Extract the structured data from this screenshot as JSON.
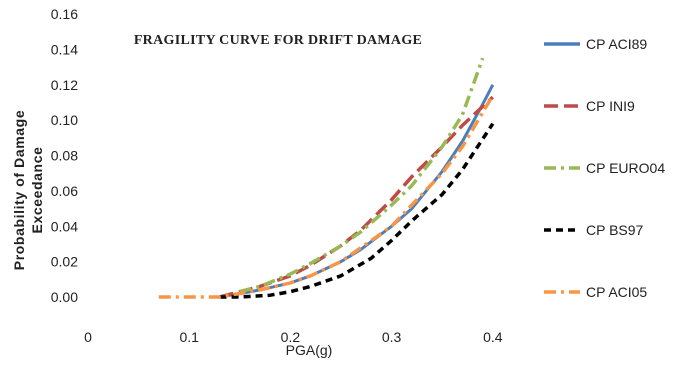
{
  "chart_data": {
    "type": "line",
    "title": "FRAGILITY CURVE FOR DRIFT DAMAGE",
    "xlabel": "PGA(g)",
    "ylabel_lines": [
      "Probability of Damage",
      "Exceedance"
    ],
    "xlim": [
      0,
      0.5
    ],
    "ylim": [
      0,
      0.16
    ],
    "x_ticks": [
      "0",
      "0.1",
      "0.2",
      "0.3",
      "0.4"
    ],
    "y_ticks": [
      "0.00",
      "0.02",
      "0.04",
      "0.06",
      "0.08",
      "0.10",
      "0.12",
      "0.14",
      "0.16"
    ],
    "legend_position": "right",
    "series": [
      {
        "name": "CP ACI89",
        "color": "#4a7ebb",
        "dash": "solid",
        "x": [
          0.13,
          0.15,
          0.17,
          0.2,
          0.22,
          0.25,
          0.27,
          0.3,
          0.32,
          0.35,
          0.37,
          0.39,
          0.4
        ],
        "y": [
          0.0,
          0.002,
          0.004,
          0.008,
          0.012,
          0.02,
          0.027,
          0.04,
          0.05,
          0.071,
          0.088,
          0.109,
          0.12
        ]
      },
      {
        "name": "CP INI9",
        "color": "#be4b48",
        "dash": "long-dash",
        "x": [
          0.13,
          0.15,
          0.17,
          0.2,
          0.22,
          0.25,
          0.27,
          0.3,
          0.32,
          0.35,
          0.37,
          0.4
        ],
        "y": [
          0.0,
          0.003,
          0.006,
          0.012,
          0.018,
          0.029,
          0.038,
          0.055,
          0.068,
          0.085,
          0.097,
          0.113
        ]
      },
      {
        "name": "CP EURO04",
        "color": "#98b954",
        "dash": "dash-dot",
        "x": [
          0.15,
          0.17,
          0.2,
          0.22,
          0.25,
          0.27,
          0.3,
          0.32,
          0.35,
          0.37,
          0.39
        ],
        "y": [
          0.003,
          0.006,
          0.013,
          0.019,
          0.029,
          0.037,
          0.052,
          0.063,
          0.085,
          0.103,
          0.135
        ]
      },
      {
        "name": "CP BS97",
        "color": "#000000",
        "dash": "short-dash",
        "x": [
          0.13,
          0.15,
          0.18,
          0.2,
          0.22,
          0.25,
          0.28,
          0.3,
          0.32,
          0.35,
          0.37,
          0.4
        ],
        "y": [
          0.0,
          0.0,
          0.001,
          0.003,
          0.006,
          0.012,
          0.022,
          0.032,
          0.043,
          0.058,
          0.072,
          0.098
        ]
      },
      {
        "name": "CP ACI05",
        "color": "#f79646",
        "dash": "dash-dot",
        "x": [
          0.07,
          0.1,
          0.13,
          0.15,
          0.17,
          0.2,
          0.22,
          0.25,
          0.27,
          0.3,
          0.32,
          0.35,
          0.37,
          0.4
        ],
        "y": [
          0.0,
          0.0,
          0.0,
          0.002,
          0.004,
          0.008,
          0.012,
          0.02,
          0.028,
          0.04,
          0.052,
          0.07,
          0.085,
          0.114
        ]
      }
    ]
  }
}
